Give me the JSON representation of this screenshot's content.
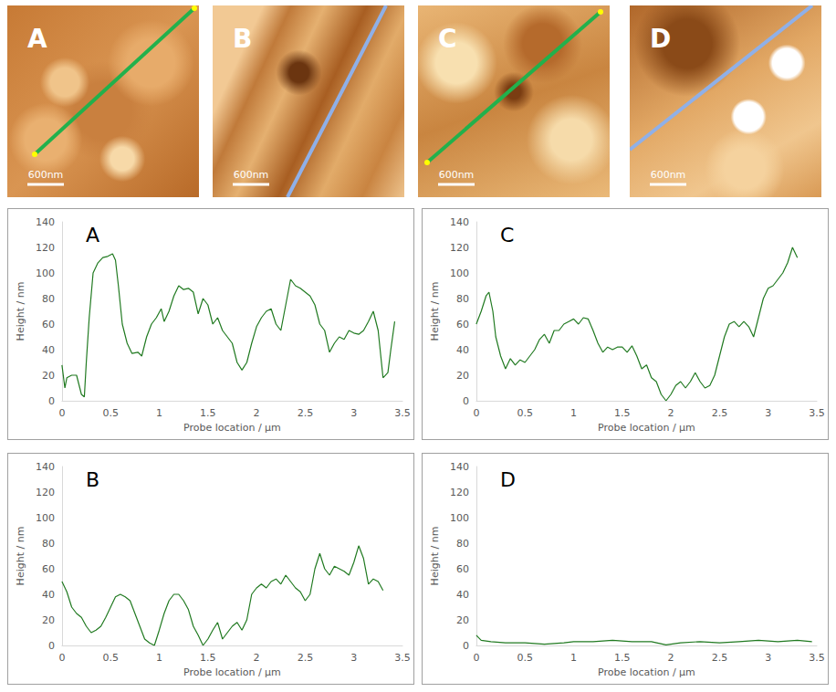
{
  "images": [
    {
      "label": "A",
      "scale_bar": "600nm",
      "color": "#22b14c"
    },
    {
      "label": "B",
      "scale_bar": "600nm",
      "color": "#8fb0e8"
    },
    {
      "label": "C",
      "scale_bar": "600nm",
      "color": "#22b14c"
    },
    {
      "label": "D",
      "scale_bar": "600nm",
      "color": "#8fb0e8"
    }
  ],
  "chart_data": [
    {
      "type": "line",
      "title": "A",
      "x_label": "Probe location / µm",
      "y_label": "Height / nm",
      "color": "#217a21",
      "grid": false,
      "xlim": [
        0,
        3.5
      ],
      "xticks": [
        0,
        0.5,
        1,
        1.5,
        2,
        2.5,
        3,
        3.5
      ],
      "ylim": [
        0,
        140
      ],
      "yticks": [
        0,
        20,
        40,
        60,
        80,
        100,
        120,
        140
      ],
      "x": [
        0,
        0.03,
        0.05,
        0.1,
        0.15,
        0.2,
        0.23,
        0.25,
        0.28,
        0.32,
        0.37,
        0.42,
        0.47,
        0.52,
        0.55,
        0.58,
        0.62,
        0.67,
        0.72,
        0.78,
        0.82,
        0.87,
        0.92,
        0.97,
        1.02,
        1.05,
        1.1,
        1.15,
        1.2,
        1.25,
        1.3,
        1.35,
        1.4,
        1.45,
        1.5,
        1.55,
        1.6,
        1.65,
        1.7,
        1.75,
        1.8,
        1.85,
        1.9,
        1.95,
        2.0,
        2.05,
        2.1,
        2.15,
        2.2,
        2.25,
        2.3,
        2.35,
        2.4,
        2.45,
        2.5,
        2.55,
        2.6,
        2.65,
        2.7,
        2.75,
        2.8,
        2.85,
        2.9,
        2.95,
        3.0,
        3.05,
        3.1,
        3.15,
        3.2,
        3.25,
        3.3,
        3.35,
        3.38,
        3.42
      ],
      "values": [
        28,
        10,
        18,
        20,
        20,
        5,
        3,
        30,
        65,
        100,
        108,
        112,
        113,
        115,
        110,
        90,
        60,
        45,
        37,
        38,
        35,
        50,
        60,
        65,
        72,
        62,
        70,
        82,
        90,
        87,
        88,
        85,
        68,
        80,
        75,
        60,
        65,
        55,
        50,
        45,
        30,
        24,
        30,
        45,
        58,
        65,
        70,
        72,
        60,
        55,
        75,
        95,
        90,
        88,
        85,
        82,
        75,
        60,
        55,
        38,
        45,
        50,
        48,
        55,
        53,
        52,
        55,
        62,
        70,
        55,
        18,
        22,
        40,
        62
      ]
    },
    {
      "type": "line",
      "title": "B",
      "x_label": "Probe location / µm",
      "y_label": "Height / nm",
      "color": "#217a21",
      "grid": false,
      "xlim": [
        0,
        3.5
      ],
      "xticks": [
        0,
        0.5,
        1,
        1.5,
        2,
        2.5,
        3,
        3.5
      ],
      "ylim": [
        0,
        140
      ],
      "yticks": [
        0,
        20,
        40,
        60,
        80,
        100,
        120,
        140
      ],
      "x": [
        0,
        0.05,
        0.1,
        0.15,
        0.2,
        0.25,
        0.3,
        0.35,
        0.4,
        0.45,
        0.5,
        0.55,
        0.6,
        0.65,
        0.7,
        0.75,
        0.8,
        0.85,
        0.9,
        0.95,
        1.0,
        1.05,
        1.1,
        1.15,
        1.2,
        1.25,
        1.3,
        1.35,
        1.4,
        1.45,
        1.5,
        1.55,
        1.6,
        1.65,
        1.7,
        1.75,
        1.8,
        1.85,
        1.9,
        1.95,
        2.0,
        2.05,
        2.1,
        2.15,
        2.2,
        2.25,
        2.3,
        2.35,
        2.4,
        2.45,
        2.5,
        2.55,
        2.6,
        2.65,
        2.7,
        2.75,
        2.8,
        2.85,
        2.9,
        2.95,
        3.0,
        3.05,
        3.1,
        3.15,
        3.2,
        3.25,
        3.3
      ],
      "values": [
        50,
        42,
        30,
        25,
        22,
        15,
        10,
        12,
        15,
        22,
        30,
        38,
        40,
        38,
        35,
        25,
        15,
        5,
        2,
        0,
        12,
        25,
        35,
        40,
        40,
        35,
        28,
        15,
        8,
        0,
        5,
        12,
        18,
        5,
        10,
        15,
        18,
        12,
        20,
        40,
        45,
        48,
        45,
        50,
        52,
        48,
        55,
        50,
        45,
        42,
        35,
        40,
        60,
        72,
        60,
        55,
        62,
        60,
        58,
        55,
        65,
        78,
        68,
        48,
        52,
        50,
        43
      ]
    },
    {
      "type": "line",
      "title": "C",
      "x_label": "Probe location / µm",
      "y_label": "Height / nm",
      "color": "#217a21",
      "grid": false,
      "xlim": [
        0,
        3.5
      ],
      "xticks": [
        0,
        0.5,
        1,
        1.5,
        2,
        2.5,
        3,
        3.5
      ],
      "ylim": [
        0,
        140
      ],
      "yticks": [
        0,
        20,
        40,
        60,
        80,
        100,
        120,
        140
      ],
      "x": [
        0,
        0.05,
        0.1,
        0.13,
        0.17,
        0.2,
        0.25,
        0.3,
        0.35,
        0.4,
        0.45,
        0.5,
        0.55,
        0.6,
        0.65,
        0.7,
        0.75,
        0.8,
        0.85,
        0.9,
        0.95,
        1.0,
        1.05,
        1.1,
        1.15,
        1.2,
        1.25,
        1.3,
        1.35,
        1.4,
        1.45,
        1.5,
        1.55,
        1.6,
        1.65,
        1.7,
        1.75,
        1.8,
        1.85,
        1.9,
        1.95,
        2.0,
        2.05,
        2.1,
        2.15,
        2.2,
        2.25,
        2.3,
        2.35,
        2.4,
        2.45,
        2.5,
        2.55,
        2.6,
        2.65,
        2.7,
        2.75,
        2.8,
        2.85,
        2.9,
        2.95,
        3.0,
        3.05,
        3.1,
        3.15,
        3.2,
        3.25,
        3.3
      ],
      "values": [
        60,
        70,
        82,
        85,
        70,
        50,
        35,
        25,
        33,
        28,
        32,
        30,
        35,
        40,
        48,
        52,
        45,
        55,
        55,
        60,
        62,
        64,
        60,
        65,
        64,
        55,
        45,
        38,
        42,
        40,
        42,
        42,
        38,
        43,
        35,
        25,
        28,
        18,
        15,
        5,
        0,
        5,
        12,
        15,
        10,
        15,
        22,
        15,
        10,
        12,
        20,
        35,
        50,
        60,
        62,
        58,
        62,
        58,
        50,
        65,
        80,
        88,
        90,
        95,
        100,
        108,
        120,
        112
      ]
    },
    {
      "type": "line",
      "title": "D",
      "x_label": "Probe location / µm",
      "y_label": "Height / nm",
      "color": "#217a21",
      "grid": false,
      "xlim": [
        0,
        3.5
      ],
      "xticks": [
        0,
        0.5,
        1,
        1.5,
        2,
        2.5,
        3,
        3.5
      ],
      "ylim": [
        0,
        140
      ],
      "yticks": [
        0,
        20,
        40,
        60,
        80,
        100,
        120,
        140
      ],
      "x": [
        0,
        0.05,
        0.15,
        0.3,
        0.5,
        0.7,
        0.9,
        1.0,
        1.2,
        1.4,
        1.6,
        1.8,
        1.95,
        2.1,
        2.3,
        2.5,
        2.7,
        2.9,
        3.1,
        3.3,
        3.45
      ],
      "values": [
        8,
        4,
        3,
        2,
        2,
        1,
        2,
        3,
        3,
        4,
        3,
        3,
        0.5,
        2,
        3,
        2,
        3,
        4,
        3,
        4,
        3
      ]
    }
  ]
}
